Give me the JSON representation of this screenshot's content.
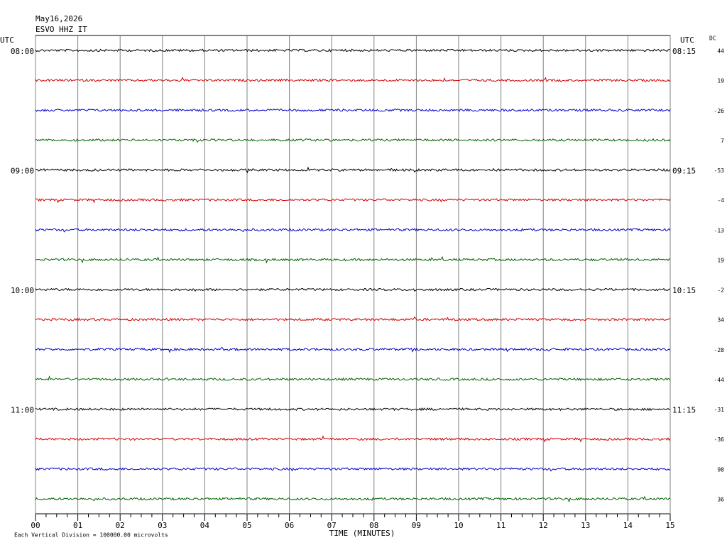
{
  "chart_data": {
    "type": "helicorder",
    "date": "May16,2026",
    "station": "ESVO HHZ IT",
    "left_axis_label": "UTC",
    "right_axis_label": "UTC",
    "dc_label": "DC",
    "xlabel": "TIME (MINUTES)",
    "footnote": "Each Vertical Division = 100000.00 microvolts",
    "xlim": [
      0,
      15
    ],
    "xticks": [
      {
        "value": 0,
        "label": "00"
      },
      {
        "value": 1,
        "label": "01"
      },
      {
        "value": 2,
        "label": "02"
      },
      {
        "value": 3,
        "label": "03"
      },
      {
        "value": 4,
        "label": "04"
      },
      {
        "value": 5,
        "label": "05"
      },
      {
        "value": 6,
        "label": "06"
      },
      {
        "value": 7,
        "label": "07"
      },
      {
        "value": 8,
        "label": "08"
      },
      {
        "value": 9,
        "label": "09"
      },
      {
        "value": 10,
        "label": "10"
      },
      {
        "value": 11,
        "label": "11"
      },
      {
        "value": 12,
        "label": "12"
      },
      {
        "value": 13,
        "label": "13"
      },
      {
        "value": 14,
        "label": "14"
      },
      {
        "value": 15,
        "label": "15"
      }
    ],
    "rows": [
      {
        "left": "08:00",
        "right": "08:15",
        "dc": 44,
        "color": "#000000"
      },
      {
        "left": null,
        "right": null,
        "dc": 19,
        "color": "#d00000"
      },
      {
        "left": null,
        "right": null,
        "dc": -26,
        "color": "#0000c8"
      },
      {
        "left": null,
        "right": null,
        "dc": 7,
        "color": "#006400"
      },
      {
        "left": "09:00",
        "right": "09:15",
        "dc": -53,
        "color": "#000000"
      },
      {
        "left": null,
        "right": null,
        "dc": -4,
        "color": "#d00000"
      },
      {
        "left": null,
        "right": null,
        "dc": -13,
        "color": "#0000c8"
      },
      {
        "left": null,
        "right": null,
        "dc": 19,
        "color": "#006400"
      },
      {
        "left": "10:00",
        "right": "10:15",
        "dc": -2,
        "color": "#000000"
      },
      {
        "left": null,
        "right": null,
        "dc": 34,
        "color": "#d00000"
      },
      {
        "left": null,
        "right": null,
        "dc": -28,
        "color": "#0000c8"
      },
      {
        "left": null,
        "right": null,
        "dc": -44,
        "color": "#006400"
      },
      {
        "left": "11:00",
        "right": "11:15",
        "dc": -31,
        "color": "#000000"
      },
      {
        "left": null,
        "right": null,
        "dc": -36,
        "color": "#d00000"
      },
      {
        "left": null,
        "right": null,
        "dc": 98,
        "color": "#0000c8"
      },
      {
        "left": null,
        "right": null,
        "dc": 36,
        "color": "#006400"
      }
    ]
  }
}
